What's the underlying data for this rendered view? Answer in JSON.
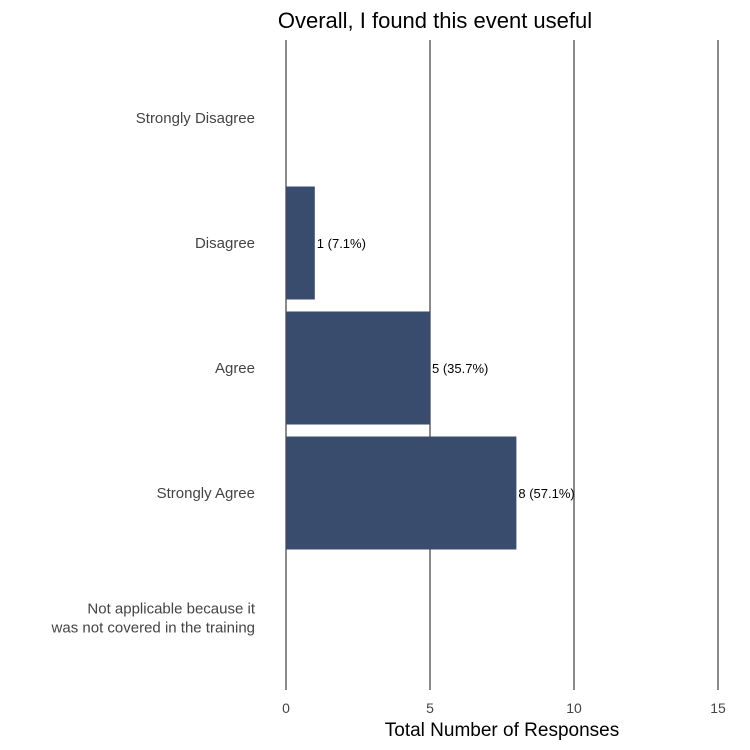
{
  "chart_data": {
    "type": "bar",
    "orientation": "horizontal",
    "title": "Overall, I found this event useful",
    "xlabel": "Total Number of Responses",
    "ylabel": "",
    "categories": [
      "Strongly Disagree",
      "Disagree",
      "Agree",
      "Strongly Agree",
      "Not applicable because it\nwas not covered in the training"
    ],
    "values": [
      0,
      1,
      5,
      8,
      0
    ],
    "data_labels": [
      "",
      "1 (7.1%)",
      "5 (35.7%)",
      "8 (57.1%)",
      ""
    ],
    "xlim": [
      0,
      15
    ],
    "xticks": [
      0,
      5,
      10,
      15
    ],
    "grid": "vertical major",
    "bar_color": "#3a4c6d",
    "grid_color": "#8a8a8a"
  }
}
